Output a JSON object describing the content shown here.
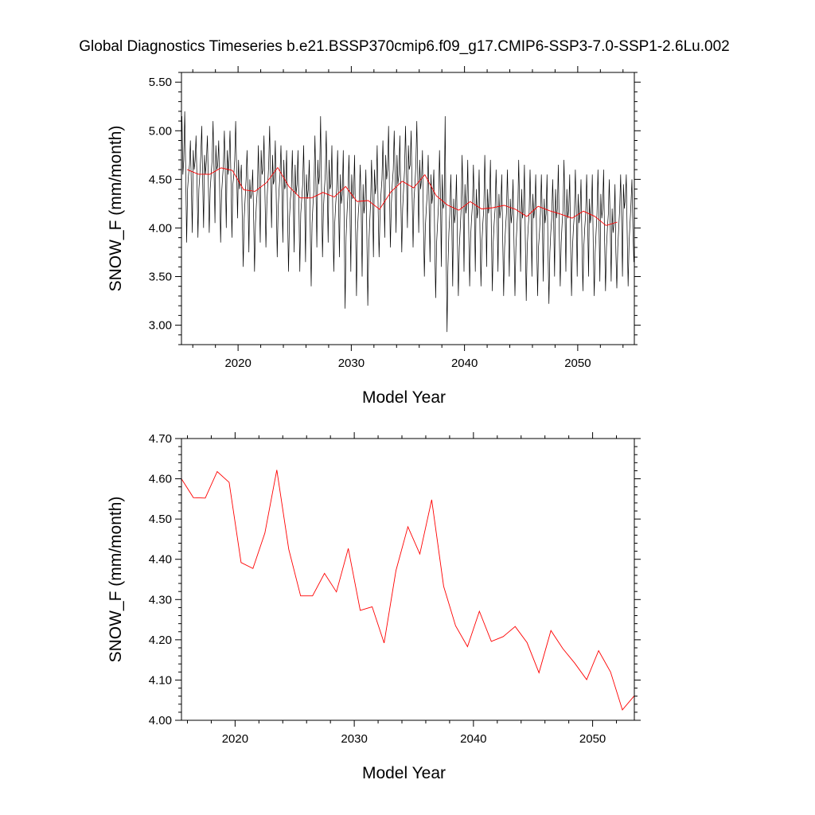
{
  "title": "Global Diagnostics Timeseries b.e21.BSSP370cmip6.f09_g17.CMIP6-SSP3-7.0-SSP1-2.6Lu.002",
  "colors": {
    "monthly": "#000000",
    "annual": "#ff0000",
    "axes": "#000000"
  },
  "chart_data": [
    {
      "type": "line",
      "xlabel": "Model Year",
      "ylabel": "SNOW_F (mm/month)",
      "xlim": [
        2015,
        2055
      ],
      "ylim": [
        2.8,
        5.6
      ],
      "xticks": [
        2020,
        2030,
        2040,
        2050
      ],
      "xtick_labels": [
        "2020",
        "2030",
        "2040",
        "2050"
      ],
      "yticks": [
        3.0,
        3.5,
        4.0,
        4.5,
        5.0,
        5.5
      ],
      "ytick_labels": [
        "3.00",
        "3.50",
        "4.00",
        "4.50",
        "5.00",
        "5.50"
      ],
      "series": [
        {
          "color": "#000000",
          "x_start": 2015.04,
          "x_step": 0.08333,
          "values": [
            5.15,
            4.55,
            4.7,
            5.2,
            4.6,
            3.85,
            4.4,
            4.55,
            4.65,
            4.9,
            4.45,
            3.95,
            4.8,
            4.6,
            4.7,
            4.95,
            4.5,
            3.9,
            4.4,
            4.55,
            4.75,
            5.05,
            4.5,
            4.0,
            4.75,
            4.55,
            4.7,
            4.95,
            4.45,
            3.95,
            4.4,
            4.55,
            4.7,
            5.1,
            4.6,
            4.05,
            4.85,
            4.6,
            4.65,
            4.9,
            4.4,
            3.85,
            4.35,
            4.5,
            4.65,
            5.0,
            4.55,
            4.0,
            4.8,
            4.55,
            4.7,
            5.0,
            4.5,
            3.9,
            4.45,
            4.55,
            4.7,
            5.1,
            4.6,
            4.1,
            4.7,
            4.4,
            4.5,
            4.65,
            4.1,
            3.6,
            4.1,
            4.3,
            4.5,
            4.8,
            4.4,
            3.75,
            4.5,
            4.3,
            4.35,
            4.6,
            4.1,
            3.55,
            4.05,
            4.25,
            4.4,
            4.85,
            4.35,
            3.85,
            4.8,
            4.55,
            4.6,
            4.95,
            4.35,
            3.8,
            4.25,
            4.45,
            4.65,
            5.05,
            4.5,
            4.0,
            4.75,
            4.45,
            4.5,
            4.9,
            4.3,
            3.7,
            4.2,
            4.4,
            4.55,
            4.85,
            4.4,
            3.85,
            4.7,
            4.4,
            4.45,
            4.8,
            4.15,
            3.55,
            4.1,
            4.3,
            4.4,
            4.8,
            4.35,
            3.75,
            4.65,
            4.35,
            4.45,
            4.8,
            4.2,
            3.55,
            4.15,
            4.3,
            4.45,
            4.85,
            4.3,
            3.65,
            4.55,
            4.3,
            4.4,
            4.7,
            4.0,
            3.4,
            4.05,
            4.25,
            4.4,
            4.95,
            4.45,
            3.8,
            4.7,
            4.45,
            4.55,
            5.15,
            4.4,
            3.7,
            4.2,
            4.4,
            4.55,
            5.0,
            4.45,
            3.85,
            4.7,
            4.4,
            4.45,
            4.85,
            4.1,
            3.55,
            4.05,
            4.25,
            4.4,
            4.8,
            4.3,
            3.7,
            4.55,
            4.25,
            4.35,
            4.8,
            4.0,
            3.17,
            3.9,
            4.15,
            4.35,
            4.75,
            4.25,
            3.55,
            4.55,
            4.3,
            4.35,
            4.75,
            4.05,
            3.3,
            3.95,
            4.15,
            4.3,
            4.65,
            4.2,
            3.5,
            4.45,
            4.15,
            4.25,
            4.6,
            3.95,
            3.2,
            3.8,
            4.05,
            4.25,
            4.7,
            4.3,
            3.7,
            4.6,
            4.35,
            4.45,
            4.85,
            4.2,
            3.7,
            4.15,
            4.35,
            4.5,
            4.9,
            4.45,
            3.9,
            4.75,
            4.5,
            4.6,
            5.05,
            4.35,
            3.8,
            4.25,
            4.45,
            4.6,
            5.0,
            4.5,
            3.95,
            4.75,
            4.45,
            4.55,
            4.95,
            4.3,
            3.75,
            4.2,
            4.4,
            4.6,
            5.05,
            4.55,
            4.0,
            4.85,
            4.6,
            4.65,
            5.0,
            4.35,
            3.8,
            4.3,
            4.45,
            4.65,
            5.1,
            4.55,
            3.95,
            4.7,
            4.4,
            4.5,
            4.8,
            4.05,
            3.5,
            4.0,
            4.2,
            4.35,
            4.75,
            4.25,
            3.65,
            4.55,
            4.25,
            4.35,
            4.6,
            3.85,
            3.28,
            3.85,
            4.05,
            4.25,
            4.8,
            4.35,
            3.6,
            4.55,
            4.2,
            4.25,
            5.15,
            3.8,
            2.93,
            3.6,
            3.95,
            4.15,
            4.55,
            4.1,
            3.4,
            4.3,
            4.05,
            4.15,
            4.55,
            3.9,
            3.3,
            3.8,
            4.0,
            4.2,
            4.75,
            4.3,
            3.55,
            4.45,
            4.15,
            4.25,
            4.7,
            4.0,
            3.4,
            3.9,
            4.1,
            4.25,
            4.65,
            4.2,
            3.55,
            4.4,
            4.1,
            4.2,
            4.6,
            3.95,
            3.4,
            3.85,
            4.05,
            4.2,
            4.75,
            4.25,
            3.6,
            4.4,
            4.15,
            4.25,
            4.7,
            3.95,
            3.35,
            3.85,
            4.05,
            4.2,
            4.6,
            4.15,
            3.55,
            4.35,
            4.1,
            4.2,
            4.55,
            3.9,
            3.3,
            3.8,
            4.0,
            4.15,
            4.6,
            4.15,
            3.5,
            4.3,
            4.05,
            4.15,
            4.5,
            3.85,
            3.3,
            3.8,
            4.0,
            4.2,
            4.7,
            4.2,
            3.55,
            4.4,
            4.1,
            4.2,
            4.65,
            3.9,
            3.25,
            3.8,
            4.0,
            4.15,
            4.6,
            4.15,
            3.5,
            4.35,
            4.1,
            4.2,
            4.55,
            3.85,
            3.3,
            3.8,
            3.95,
            4.15,
            4.55,
            4.1,
            3.45,
            4.3,
            4.05,
            4.15,
            4.55,
            3.8,
            3.22,
            3.75,
            3.95,
            4.1,
            4.5,
            4.1,
            3.5,
            4.4,
            4.1,
            4.2,
            4.65,
            3.95,
            3.4,
            3.85,
            4.05,
            4.2,
            4.7,
            4.2,
            3.55,
            4.4,
            4.1,
            4.2,
            4.55,
            3.85,
            3.3,
            3.8,
            4.0,
            4.15,
            4.6,
            4.15,
            3.5,
            4.35,
            4.05,
            4.15,
            4.5,
            3.85,
            3.35,
            3.8,
            4.0,
            4.15,
            4.55,
            4.1,
            3.5,
            4.3,
            4.05,
            4.15,
            4.55,
            3.8,
            3.3,
            3.75,
            3.95,
            4.15,
            4.6,
            4.1,
            3.45,
            4.35,
            4.1,
            4.2,
            4.6,
            3.9,
            3.35,
            3.8,
            4.0,
            4.15,
            4.5,
            4.05,
            3.45,
            4.2,
            3.95,
            4.05,
            4.45,
            3.75,
            3.38,
            3.8,
            4.0,
            4.2,
            4.55,
            4.1,
            3.5,
            4.45,
            4.2,
            4.3,
            4.55,
            3.9,
            3.4,
            3.85,
            4.05,
            4.25,
            4.5,
            4.0,
            3.65
          ]
        },
        {
          "color": "#ff0000",
          "x": [
            2015.5,
            2016.5,
            2017.5,
            2018.5,
            2019.5,
            2020.5,
            2021.5,
            2022.5,
            2023.5,
            2024.5,
            2025.5,
            2026.5,
            2027.5,
            2028.5,
            2029.5,
            2030.5,
            2031.5,
            2032.5,
            2033.5,
            2034.5,
            2035.5,
            2036.5,
            2037.5,
            2038.5,
            2039.5,
            2040.5,
            2041.5,
            2042.5,
            2043.5,
            2044.5,
            2045.5,
            2046.5,
            2047.5,
            2048.5,
            2049.5,
            2050.5,
            2051.5,
            2052.5,
            2053.5
          ],
          "values": [
            4.6,
            4.553,
            4.552,
            4.618,
            4.591,
            4.392,
            4.377,
            4.465,
            4.622,
            4.425,
            4.309,
            4.309,
            4.365,
            4.319,
            4.427,
            4.273,
            4.282,
            4.192,
            4.372,
            4.481,
            4.413,
            4.548,
            4.333,
            4.235,
            4.183,
            4.271,
            4.196,
            4.208,
            4.233,
            4.193,
            4.118,
            4.223,
            4.178,
            4.142,
            4.101,
            4.173,
            4.12,
            4.026,
            4.061
          ]
        }
      ]
    },
    {
      "type": "line",
      "xlabel": "Model Year",
      "ylabel": "SNOW_F (mm/month)",
      "xlim": [
        2015.5,
        2053.5
      ],
      "ylim": [
        4.0,
        4.7
      ],
      "xticks": [
        2020,
        2030,
        2040,
        2050
      ],
      "xtick_labels": [
        "2020",
        "2030",
        "2040",
        "2050"
      ],
      "yticks": [
        4.0,
        4.1,
        4.2,
        4.3,
        4.4,
        4.5,
        4.6,
        4.7
      ],
      "ytick_labels": [
        "4.00",
        "4.10",
        "4.20",
        "4.30",
        "4.40",
        "4.50",
        "4.60",
        "4.70"
      ],
      "series": [
        {
          "color": "#ff0000",
          "x": [
            2015.5,
            2016.5,
            2017.5,
            2018.5,
            2019.5,
            2020.5,
            2021.5,
            2022.5,
            2023.5,
            2024.5,
            2025.5,
            2026.5,
            2027.5,
            2028.5,
            2029.5,
            2030.5,
            2031.5,
            2032.5,
            2033.5,
            2034.5,
            2035.5,
            2036.5,
            2037.5,
            2038.5,
            2039.5,
            2040.5,
            2041.5,
            2042.5,
            2043.5,
            2044.5,
            2045.5,
            2046.5,
            2047.5,
            2048.5,
            2049.5,
            2050.5,
            2051.5,
            2052.5,
            2053.5
          ],
          "values": [
            4.6,
            4.553,
            4.552,
            4.618,
            4.591,
            4.392,
            4.377,
            4.465,
            4.622,
            4.425,
            4.309,
            4.309,
            4.365,
            4.319,
            4.427,
            4.273,
            4.282,
            4.192,
            4.372,
            4.481,
            4.413,
            4.548,
            4.333,
            4.235,
            4.183,
            4.271,
            4.196,
            4.208,
            4.233,
            4.193,
            4.118,
            4.223,
            4.178,
            4.142,
            4.101,
            4.173,
            4.12,
            4.026,
            4.061
          ]
        }
      ]
    }
  ]
}
